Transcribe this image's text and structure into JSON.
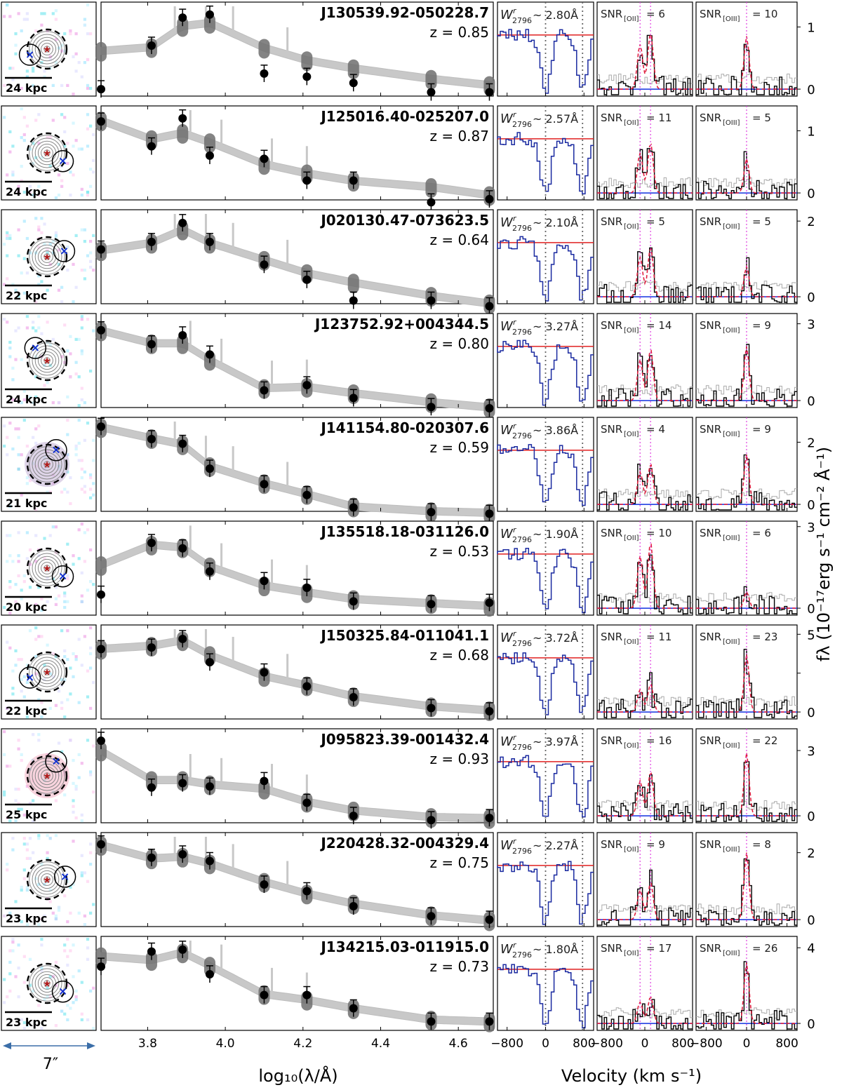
{
  "figure": {
    "scale_arrow_label": "7″",
    "sed_xlabel": "log₁₀(λ/Å)",
    "vel_xlabel": "Velocity (km s⁻¹)",
    "ylabel": "fλ (10⁻¹⁷erg s⁻¹ cm⁻² Å⁻¹)"
  },
  "chart_data": {
    "type": "line",
    "sed_axis": {
      "xlim": [
        3.68,
        4.69
      ],
      "ticks": [
        3.8,
        4.0,
        4.2,
        4.4,
        4.6
      ],
      "tick_labels": [
        "3.8",
        "4.0",
        "4.2",
        "4.4",
        "4.6"
      ]
    },
    "vel_axis": {
      "xlim": [
        -1000,
        1000
      ],
      "ticks": [
        -800,
        0,
        800
      ],
      "tick_labels": [
        "−800",
        "0",
        "800"
      ]
    },
    "phot_x": [
      3.68,
      3.81,
      3.89,
      3.96,
      4.1,
      4.21,
      4.33,
      4.53,
      4.68
    ],
    "rows": [
      {
        "name": "J130539.92-050228.7",
        "z": "z = 0.85",
        "kpc": "24 kpc",
        "w": "~ 2.80Å",
        "snr_oii": "6",
        "snr_oiii": "10",
        "ymax": 1.4,
        "yticks": [
          0,
          1
        ],
        "ytick_labels": [
          "0",
          "1"
        ],
        "phot": [
          0.0,
          0.7,
          1.15,
          1.2,
          0.25,
          0.2,
          0.1,
          -0.05,
          -0.05
        ],
        "model": [
          0.6,
          0.66,
          1.0,
          1.05,
          0.65,
          0.45,
          0.32,
          0.15,
          0.05
        ],
        "pin": [
          0.05,
          0.52
        ],
        "pout": [
          0.25,
          0.55
        ],
        "dbl": true,
        "oii": 0.9,
        "oiii": 0.85
      },
      {
        "name": "J125016.40-025207.0",
        "z": "z = 0.87",
        "kpc": "24 kpc",
        "w": "~ 2.57Å",
        "snr_oii": "11",
        "snr_oiii": "5",
        "ymax": 1.4,
        "yticks": [
          0,
          1
        ],
        "ytick_labels": [
          "0",
          "1"
        ],
        "phot": [
          1.15,
          0.75,
          1.2,
          0.6,
          0.55,
          0.2,
          0.2,
          -0.15,
          -0.1
        ],
        "model": [
          1.15,
          0.85,
          0.95,
          0.8,
          0.45,
          0.3,
          0.18,
          0.08,
          -0.05
        ],
        "pin": [
          0.35,
          0.75
        ],
        "pout": [
          0.45,
          0.78
        ],
        "dbl": true,
        "oii": 0.8,
        "oiii": 0.55
      },
      {
        "name": "J020130.47-073623.5",
        "z": "z = 0.64",
        "kpc": "22 kpc",
        "w": "~ 2.10Å",
        "snr_oii": "5",
        "snr_oiii": "5",
        "ymax": 2.3,
        "yticks": [
          0,
          2
        ],
        "ytick_labels": [
          "0",
          "2"
        ],
        "phot": [
          1.25,
          1.45,
          1.95,
          1.45,
          0.85,
          0.45,
          -0.1,
          -0.1,
          -0.25
        ],
        "model": [
          1.2,
          1.4,
          1.75,
          1.4,
          0.95,
          0.6,
          0.35,
          0.0,
          -0.2
        ],
        "pin": [
          0.35,
          0.78
        ],
        "pout": [
          0.45,
          0.8
        ],
        "dbl": true,
        "oii": 1.3,
        "oiii": 0.8
      },
      {
        "name": "J123752.92+004344.5",
        "z": "z = 0.80",
        "kpc": "24 kpc",
        "w": "~ 3.27Å",
        "snr_oii": "14",
        "snr_oiii": "9",
        "ymax": 3.4,
        "yticks": [
          0,
          3
        ],
        "ytick_labels": [
          "0",
          "3"
        ],
        "phot": [
          2.75,
          2.2,
          2.55,
          1.8,
          0.4,
          0.6,
          0.1,
          -0.25,
          -0.3
        ],
        "model": [
          2.7,
          2.2,
          2.2,
          1.55,
          0.45,
          0.5,
          0.25,
          -0.1,
          -0.3
        ],
        "pin": [
          0.35,
          0.78
        ],
        "pout": [
          0.45,
          0.8
        ],
        "dbl": true,
        "oii": 2.0,
        "oiii": 2.1
      },
      {
        "name": "J141154.80-020307.6",
        "z": "z = 0.59",
        "kpc": "21 kpc",
        "w": "~ 3.86Å",
        "snr_oii": "4",
        "snr_oiii": "9",
        "ymax": 2.8,
        "yticks": [
          0,
          2
        ],
        "ytick_labels": [
          "0",
          "2"
        ],
        "phot": [
          2.5,
          2.1,
          1.95,
          1.15,
          0.65,
          0.3,
          -0.1,
          -0.25,
          -0.3
        ],
        "model": [
          2.45,
          2.1,
          1.9,
          1.2,
          0.65,
          0.3,
          -0.1,
          -0.25,
          -0.3
        ],
        "pin": [
          0.35,
          0.78
        ],
        "pout": [
          0.45,
          0.8
        ],
        "dbl": true,
        "oii": 1.3,
        "oiii": 1.6
      },
      {
        "name": "J135518.18-031126.0",
        "z": "z = 0.53",
        "kpc": "20 kpc",
        "w": "~ 1.90Å",
        "snr_oii": "10",
        "snr_oiii": "6",
        "ymax": 3.2,
        "yticks": [
          0,
          3
        ],
        "ytick_labels": [
          "0",
          "3"
        ],
        "phot": [
          0.5,
          2.4,
          2.2,
          1.35,
          1.0,
          0.75,
          0.25,
          0.15,
          0.2
        ],
        "model": [
          1.55,
          2.3,
          2.2,
          1.5,
          0.8,
          0.55,
          0.3,
          0.15,
          0.05
        ],
        "pin": [
          0.35,
          0.78
        ],
        "pout": [
          0.45,
          0.8
        ],
        "dbl": true,
        "oii": 2.4,
        "oiii": 0.6
      },
      {
        "name": "J150325.84-011041.1",
        "z": "z = 0.68",
        "kpc": "22 kpc",
        "w": "~ 3.72Å",
        "snr_oii": "11",
        "snr_oiii": "23",
        "ymax": 5.6,
        "yticks": [
          0,
          2.5,
          5
        ],
        "ytick_labels": [
          "0",
          "",
          "5"
        ],
        "phot": [
          4.05,
          4.15,
          4.7,
          3.2,
          2.55,
          1.65,
          0.95,
          0.25,
          0.05
        ],
        "model": [
          4.0,
          4.2,
          4.55,
          3.6,
          2.25,
          1.65,
          0.95,
          0.3,
          0.05
        ],
        "pin": [
          0.35,
          0.78
        ],
        "pout": [
          0.45,
          0.8
        ],
        "dbl": true,
        "oii": 1.8,
        "oiii": 3.7
      },
      {
        "name": "J095823.39-001432.4",
        "z": "z = 0.93",
        "kpc": "25 kpc",
        "w": "~ 3.97Å",
        "snr_oii": "16",
        "snr_oiii": "22",
        "ymax": 4.0,
        "yticks": [
          0,
          3
        ],
        "ytick_labels": [
          "0",
          "3"
        ],
        "phot": [
          3.45,
          1.3,
          1.5,
          1.35,
          1.6,
          0.6,
          0.0,
          -0.2,
          -0.1
        ],
        "model": [
          2.95,
          1.6,
          1.6,
          1.4,
          1.2,
          0.6,
          0.2,
          -0.1,
          -0.15
        ],
        "pin": [
          0.35,
          0.78
        ],
        "pout": [
          0.45,
          0.8
        ],
        "dbl": true,
        "oii": 2.0,
        "oiii": 2.9
      },
      {
        "name": "J220428.32-004329.4",
        "z": "z = 0.75",
        "kpc": "23 kpc",
        "w": "~ 2.27Å",
        "snr_oii": "9",
        "snr_oiii": "8",
        "ymax": 2.6,
        "yticks": [
          0,
          2
        ],
        "ytick_labels": [
          "0",
          "2"
        ],
        "phot": [
          2.25,
          1.85,
          1.95,
          1.75,
          1.05,
          0.85,
          0.4,
          0.1,
          0.0
        ],
        "model": [
          2.2,
          1.8,
          1.85,
          1.65,
          1.1,
          0.75,
          0.45,
          0.1,
          -0.05
        ],
        "pin": [
          0.35,
          0.78
        ],
        "pout": [
          0.45,
          0.8
        ],
        "dbl": true,
        "oii": 1.1,
        "oiii": 2.0
      },
      {
        "name": "J134215.03-011915.0",
        "z": "z = 0.73",
        "kpc": "23 kpc",
        "w": "~ 1.80Å",
        "snr_oii": "17",
        "snr_oiii": "26",
        "ymax": 4.6,
        "yticks": [
          0,
          4
        ],
        "ytick_labels": [
          "0",
          "4"
        ],
        "phot": [
          3.0,
          3.8,
          3.9,
          2.6,
          1.5,
          1.5,
          0.8,
          0.1,
          0.1
        ],
        "model": [
          3.5,
          3.3,
          3.7,
          3.0,
          1.5,
          1.2,
          0.75,
          0.15,
          0.05
        ],
        "pin": [
          0.35,
          0.78
        ],
        "pout": [
          0.45,
          0.8
        ],
        "dbl": true,
        "oii": 1.4,
        "oiii": 3.2
      }
    ]
  }
}
